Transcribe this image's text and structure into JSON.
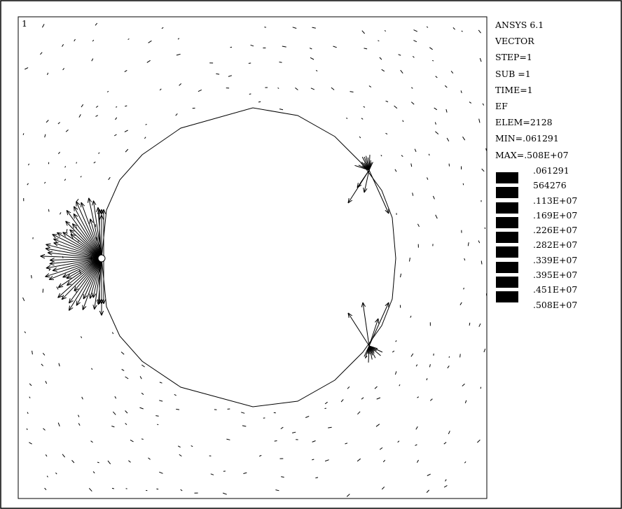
{
  "plot": {
    "window_number": "1",
    "info_lines": [
      "ANSYS 6.1",
      "VECTOR",
      "STEP=1",
      "SUB =1",
      "TIME=1",
      "EF",
      "ELEM=2128",
      "MIN=.061291",
      "MAX=.508E+07"
    ],
    "legend_levels": [
      ".061291",
      "564276",
      ".113E+07",
      ".169E+07",
      ".226E+07",
      ".282E+07",
      ".339E+07",
      ".395E+07",
      ".451E+07",
      ".508E+07"
    ],
    "colors": {
      "background": "#ffffff",
      "ink": "#000000"
    }
  }
}
